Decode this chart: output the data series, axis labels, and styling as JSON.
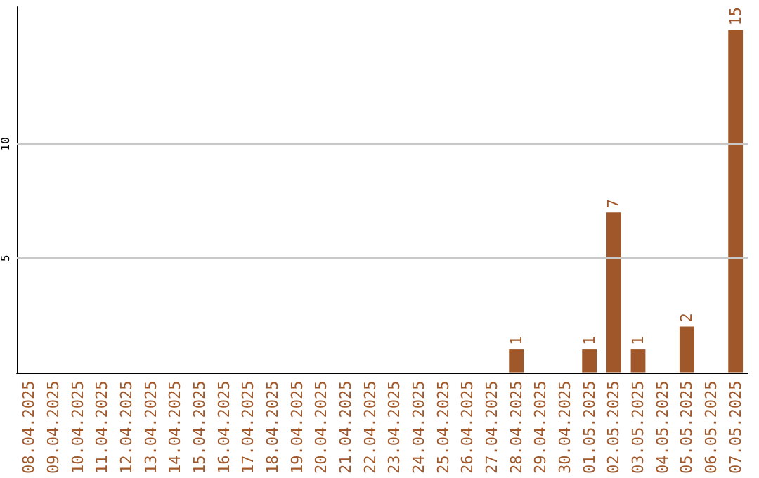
{
  "chart_data": {
    "type": "bar",
    "categories": [
      "08.04.2025",
      "09.04.2025",
      "10.04.2025",
      "11.04.2025",
      "12.04.2025",
      "13.04.2025",
      "14.04.2025",
      "15.04.2025",
      "16.04.2025",
      "17.04.2025",
      "18.04.2025",
      "19.04.2025",
      "20.04.2025",
      "21.04.2025",
      "22.04.2025",
      "23.04.2025",
      "24.04.2025",
      "25.04.2025",
      "26.04.2025",
      "27.04.2025",
      "28.04.2025",
      "29.04.2025",
      "30.04.2025",
      "01.05.2025",
      "02.05.2025",
      "03.05.2025",
      "04.05.2025",
      "05.05.2025",
      "06.05.2025",
      "07.05.2025"
    ],
    "values": [
      0,
      0,
      0,
      0,
      0,
      0,
      0,
      0,
      0,
      0,
      0,
      0,
      0,
      0,
      0,
      0,
      0,
      0,
      0,
      0,
      1,
      0,
      0,
      1,
      7,
      1,
      0,
      2,
      0,
      15
    ],
    "value_labels": [
      null,
      null,
      null,
      null,
      null,
      null,
      null,
      null,
      null,
      null,
      null,
      null,
      null,
      null,
      null,
      null,
      null,
      null,
      null,
      null,
      "1",
      null,
      null,
      "1",
      "7",
      "1",
      null,
      "2",
      null,
      "15"
    ],
    "color": "#a0582a",
    "ylim": [
      0,
      16
    ],
    "yticks": [
      5,
      10
    ],
    "grid": "y"
  }
}
